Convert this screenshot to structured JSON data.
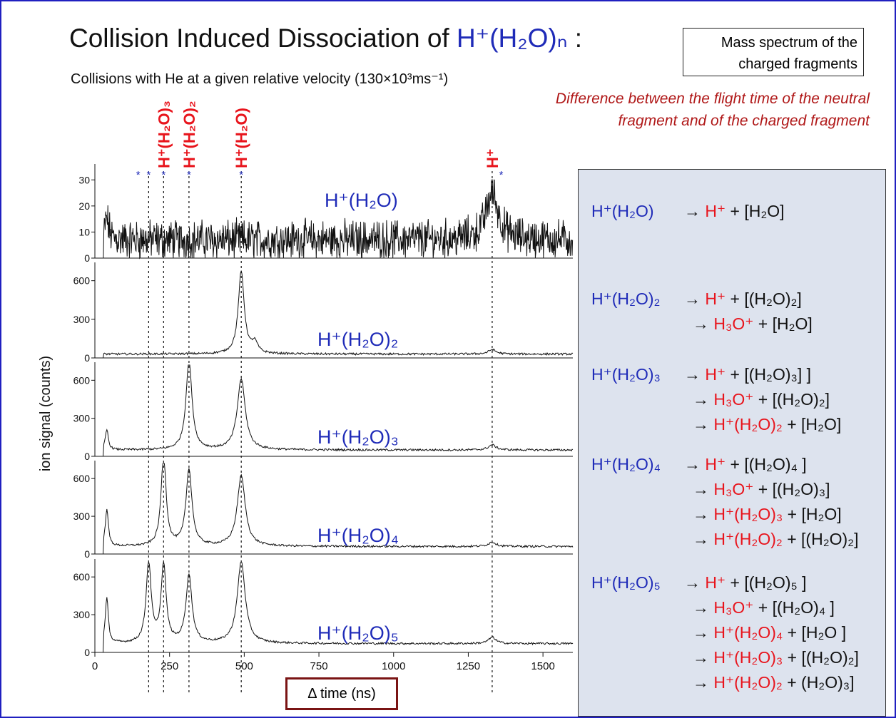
{
  "title": {
    "prefix": "Collision Induced Dissociation of ",
    "formula": "H⁺(H₂O)ₙ",
    "suffix": " :"
  },
  "subtitle": "Collisions with He at a given relative velocity (130×10³ms⁻¹)",
  "mass_box": [
    "Mass spectrum of the",
    "charged fragments"
  ],
  "note": [
    "Difference between the flight time of the neutral",
    "fragment and of the charged fragment"
  ],
  "x_axis_label": "Δ time (ns)",
  "y_axis_label": "ion signal (counts)",
  "fragment_labels": [
    "H⁺(H₂O)₃",
    "H⁺(H₂O)₂",
    "H⁺(H₂O)",
    "H⁺"
  ],
  "reactions": [
    {
      "parent": "H⁺(H₂O)",
      "products": [
        [
          [
            "H⁺",
            "r"
          ],
          [
            " + [H₂O]",
            "k"
          ]
        ]
      ]
    },
    {
      "parent": "H⁺(H₂O)₂",
      "products": [
        [
          [
            "H⁺",
            "r"
          ],
          [
            " + [(H₂O)₂]",
            "k"
          ]
        ],
        [
          [
            "H₃O⁺",
            "r"
          ],
          [
            " + [H₂O]",
            "k"
          ]
        ]
      ]
    },
    {
      "parent": "H⁺(H₂O)₃",
      "products": [
        [
          [
            "H⁺",
            "r"
          ],
          [
            " + [(H₂O)₃] ]",
            "k"
          ]
        ],
        [
          [
            "H₃O⁺",
            "r"
          ],
          [
            " + [(H₂O)₂]",
            "k"
          ]
        ],
        [
          [
            "H⁺(H₂O)₂",
            "r"
          ],
          [
            " + [H₂O]",
            "k"
          ]
        ]
      ]
    },
    {
      "parent": "H⁺(H₂O)₄",
      "products": [
        [
          [
            "H⁺",
            "r"
          ],
          [
            " + [(H₂O)₄ ]",
            "k"
          ]
        ],
        [
          [
            "H₃O⁺",
            "r"
          ],
          [
            " + [(H₂O)₃]",
            "k"
          ]
        ],
        [
          [
            "H⁺(H₂O)₃",
            "r"
          ],
          [
            " + [H₂O]",
            "k"
          ]
        ],
        [
          [
            "H⁺(H₂O)₂",
            "r"
          ],
          [
            " + [(H₂O)₂]",
            "k"
          ]
        ]
      ]
    },
    {
      "parent": "H⁺(H₂O)₅",
      "products": [
        [
          [
            "H⁺",
            "r"
          ],
          [
            " + [(H₂O)₅ ]",
            "k"
          ]
        ],
        [
          [
            "H₃O⁺",
            "r"
          ],
          [
            " + [(H₂O)₄ ]",
            "k"
          ]
        ],
        [
          [
            "H⁺(H₂O)₄",
            "r"
          ],
          [
            " + [H₂O ]",
            "k"
          ]
        ],
        [
          [
            "H⁺(H₂O)₃",
            "r"
          ],
          [
            " + [(H₂O)₂]",
            "k"
          ]
        ],
        [
          [
            "H⁺(H₂O)₂",
            "r"
          ],
          [
            " + (H₂O)₃]",
            "k"
          ]
        ]
      ]
    }
  ],
  "chart_data": {
    "type": "line",
    "xlabel": "Δ time (ns)",
    "ylabel": "ion signal (counts)",
    "xlim": [
      0,
      1600
    ],
    "x_ticks": [
      0,
      250,
      500,
      750,
      1000,
      1250,
      1500
    ],
    "fragment_lines_x": [
      180,
      230,
      315,
      490,
      1330
    ],
    "star_markers_x": [
      145,
      180,
      230,
      315,
      490,
      1360
    ],
    "colors": {
      "text_blue": "#1f2bb8",
      "text_red": "#e8141c",
      "trace": "#111111",
      "panel_bg": "#dde3ee"
    },
    "panels": [
      {
        "name": "H⁺(H₂O)",
        "ylim": [
          0,
          35
        ],
        "yticks": [
          0,
          10,
          20,
          30
        ],
        "baseline": 7,
        "noise": 6,
        "peaks": [
          {
            "x": 40,
            "h": 8,
            "w": 8
          },
          {
            "x": 1330,
            "h": 18,
            "w": 25
          }
        ]
      },
      {
        "name": "H⁺(H₂O)₂",
        "ylim": [
          0,
          720
        ],
        "yticks": [
          0,
          300,
          600
        ],
        "baseline": 30,
        "noise": 8,
        "peaks": [
          {
            "x": 490,
            "h": 640,
            "w": 12
          },
          {
            "x": 535,
            "h": 80,
            "w": 12
          },
          {
            "x": 1330,
            "h": 35,
            "w": 15
          }
        ]
      },
      {
        "name": "H⁺(H₂O)₃",
        "ylim": [
          0,
          720
        ],
        "yticks": [
          0,
          300,
          600
        ],
        "baseline": 50,
        "noise": 8,
        "peaks": [
          {
            "x": 40,
            "h": 160,
            "w": 6
          },
          {
            "x": 315,
            "h": 710,
            "w": 12
          },
          {
            "x": 490,
            "h": 560,
            "w": 16
          },
          {
            "x": 1330,
            "h": 40,
            "w": 15
          }
        ]
      },
      {
        "name": "H⁺(H₂O)₄",
        "ylim": [
          0,
          720
        ],
        "yticks": [
          0,
          300,
          600
        ],
        "baseline": 60,
        "noise": 8,
        "peaks": [
          {
            "x": 40,
            "h": 300,
            "w": 6
          },
          {
            "x": 230,
            "h": 730,
            "w": 10
          },
          {
            "x": 315,
            "h": 610,
            "w": 12
          },
          {
            "x": 490,
            "h": 560,
            "w": 16
          },
          {
            "x": 1330,
            "h": 35,
            "w": 15
          }
        ]
      },
      {
        "name": "H⁺(H₂O)₅",
        "ylim": [
          0,
          720
        ],
        "yticks": [
          0,
          300,
          600
        ],
        "baseline": 70,
        "noise": 8,
        "peaks": [
          {
            "x": 40,
            "h": 360,
            "w": 6
          },
          {
            "x": 180,
            "h": 640,
            "w": 10
          },
          {
            "x": 230,
            "h": 620,
            "w": 10
          },
          {
            "x": 315,
            "h": 540,
            "w": 12
          },
          {
            "x": 490,
            "h": 650,
            "w": 16
          },
          {
            "x": 1330,
            "h": 50,
            "w": 15
          }
        ]
      }
    ]
  }
}
